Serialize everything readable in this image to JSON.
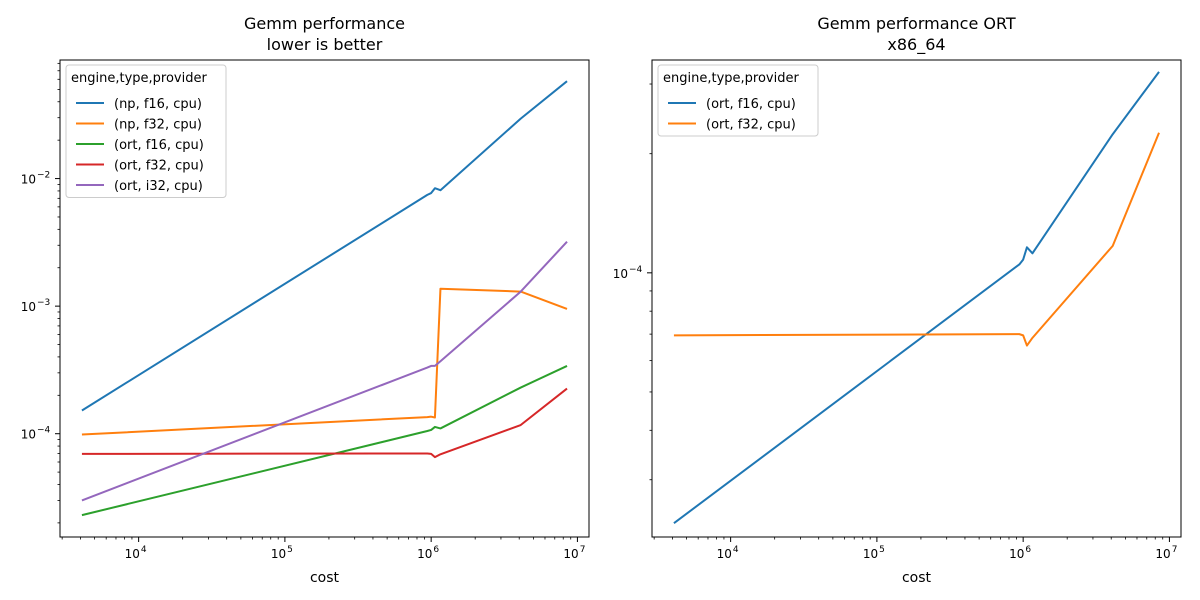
{
  "chart_data": [
    {
      "type": "line",
      "title": "Gemm performance",
      "subtitle": "lower is better",
      "xlabel": "cost",
      "ylabel": "",
      "xscale": "log",
      "yscale": "log",
      "xlim": [
        2900,
        12000000
      ],
      "ylim": [
        1.55e-05,
        0.085
      ],
      "x_ticks": [
        {
          "value": 10000,
          "base": "10",
          "exp": "4"
        },
        {
          "value": 100000,
          "base": "10",
          "exp": "5"
        },
        {
          "value": 1000000,
          "base": "10",
          "exp": "6"
        },
        {
          "value": 10000000,
          "base": "10",
          "exp": "7"
        }
      ],
      "y_ticks": [
        {
          "value": 0.0001,
          "base": "10",
          "exp": "−4"
        },
        {
          "value": 0.001,
          "base": "10",
          "exp": "−3"
        },
        {
          "value": 0.01,
          "base": "10",
          "exp": "−2"
        }
      ],
      "grid": false,
      "legend": {
        "title": "engine,type,provider",
        "position": "upper-left"
      },
      "series": [
        {
          "name": "(np, f16, cpu)",
          "color": "#1f77b4",
          "x": [
            4096,
            941192,
            1000000,
            1061208,
            1157625,
            4096000,
            8489664
          ],
          "y": [
            0.000152,
            0.00745,
            0.0077,
            0.0084,
            0.0081,
            0.0295,
            0.058
          ]
        },
        {
          "name": "(np, f32, cpu)",
          "color": "#ff7f0e",
          "x": [
            4096,
            941192,
            1000000,
            1061208,
            1157625,
            4096000,
            8489664
          ],
          "y": [
            9.85e-05,
            0.000135,
            0.000136,
            0.000134,
            0.00137,
            0.0013,
            0.00095
          ]
        },
        {
          "name": "(ort, f16, cpu)",
          "color": "#2ca02c",
          "x": [
            4096,
            941192,
            1000000,
            1061208,
            1157625,
            4096000,
            8489664
          ],
          "y": [
            2.3e-05,
            0.000105,
            0.000107,
            0.000113,
            0.00011,
            0.00023,
            0.00034
          ]
        },
        {
          "name": "(ort, f32, cpu)",
          "color": "#d62728",
          "x": [
            4096,
            941192,
            1000000,
            1061208,
            1157625,
            4096000,
            8489664
          ],
          "y": [
            6.95e-05,
            7e-05,
            6.95e-05,
            6.55e-05,
            6.9e-05,
            0.000117,
            0.000226
          ]
        },
        {
          "name": "(ort, i32, cpu)",
          "color": "#9467bd",
          "x": [
            4096,
            941192,
            1000000,
            1061208,
            1157625,
            4096000,
            8489664
          ],
          "y": [
            3e-05,
            0.00033,
            0.00034,
            0.00034,
            0.00037,
            0.0013,
            0.0032
          ]
        }
      ]
    },
    {
      "type": "line",
      "title": "Gemm performance ORT",
      "subtitle": "x86_64",
      "xlabel": "cost",
      "ylabel": "",
      "xscale": "log",
      "yscale": "log",
      "xlim": [
        2900,
        12000000
      ],
      "ylim": [
        2.15e-05,
        0.000345
      ],
      "x_ticks": [
        {
          "value": 10000,
          "base": "10",
          "exp": "4"
        },
        {
          "value": 100000,
          "base": "10",
          "exp": "5"
        },
        {
          "value": 1000000,
          "base": "10",
          "exp": "6"
        },
        {
          "value": 10000000,
          "base": "10",
          "exp": "7"
        }
      ],
      "y_ticks": [
        {
          "value": 0.0001,
          "base": "10",
          "exp": "−4"
        }
      ],
      "y_minor_ticks": [
        3e-05,
        4e-05,
        5e-05,
        6e-05,
        7e-05,
        8e-05,
        9e-05,
        0.0002,
        0.0003
      ],
      "grid": false,
      "legend": {
        "title": "engine,type,provider",
        "position": "upper-left"
      },
      "series": [
        {
          "name": "(ort, f16, cpu)",
          "color": "#1f77b4",
          "x": [
            4096,
            941192,
            1000000,
            1061208,
            1157625,
            4096000,
            8489664
          ],
          "y": [
            2.33e-05,
            0.000105,
            0.000108,
            0.000116,
            0.000112,
            0.000224,
            0.000322
          ]
        },
        {
          "name": "(ort, f32, cpu)",
          "color": "#ff7f0e",
          "x": [
            4096,
            941192,
            1000000,
            1061208,
            1157625,
            4096000,
            8489664
          ],
          "y": [
            6.95e-05,
            7e-05,
            6.95e-05,
            6.55e-05,
            6.85e-05,
            0.000117,
            0.000226
          ]
        }
      ]
    }
  ]
}
